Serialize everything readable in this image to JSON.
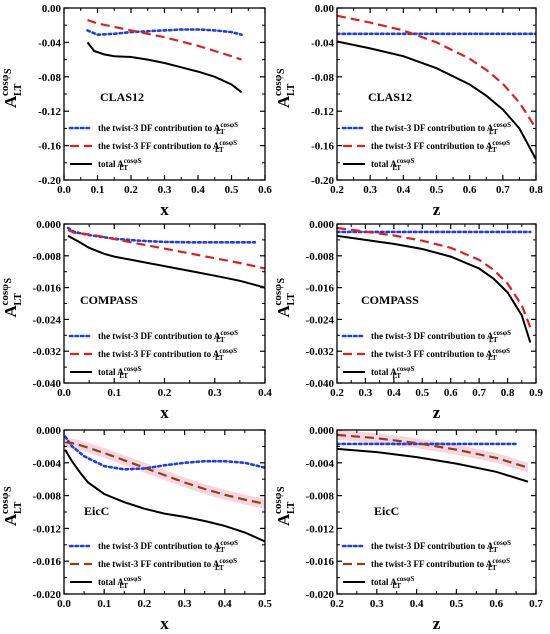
{
  "figure": {
    "y_label": {
      "main": "A",
      "sup": "cosφ",
      "sup_sub": "S",
      "sub": "LT"
    }
  },
  "chart_data": [
    {
      "type": "line",
      "annotation": "CLAS12",
      "xlabel": "x",
      "xlim": [
        0.0,
        0.6
      ],
      "ylim": [
        -0.2,
        0.0
      ],
      "xticks": [
        "0.0",
        "0.1",
        "0.2",
        "0.3",
        "0.4",
        "0.5",
        "0.6"
      ],
      "yticks": [
        "-0.20",
        "-0.16",
        "-0.12",
        "-0.08",
        "-0.04",
        "0.00"
      ],
      "series": [
        {
          "name": "the twist-3 DF contribution to A",
          "name_sup": "cosφS",
          "name_sub": "LT",
          "style": "dotted",
          "color": "#1f3fe0",
          "x": [
            0.07,
            0.1,
            0.15,
            0.2,
            0.25,
            0.3,
            0.35,
            0.4,
            0.45,
            0.5,
            0.53
          ],
          "y": [
            -0.026,
            -0.031,
            -0.03,
            -0.028,
            -0.027,
            -0.026,
            -0.025,
            -0.025,
            -0.026,
            -0.028,
            -0.031
          ]
        },
        {
          "name": "the twist-3 FF contribution to A",
          "name_sup": "cosφS",
          "name_sub": "LT",
          "style": "dashed",
          "color": "#e01f1f",
          "x": [
            0.07,
            0.1,
            0.15,
            0.2,
            0.25,
            0.3,
            0.35,
            0.4,
            0.45,
            0.5,
            0.53
          ],
          "y": [
            -0.014,
            -0.018,
            -0.022,
            -0.026,
            -0.03,
            -0.034,
            -0.039,
            -0.044,
            -0.05,
            -0.056,
            -0.06
          ]
        },
        {
          "name": "total A",
          "name_sup": "cosφS",
          "name_sub": "LT",
          "style": "solid",
          "color": "#000000",
          "x": [
            0.07,
            0.09,
            0.12,
            0.15,
            0.2,
            0.25,
            0.3,
            0.35,
            0.4,
            0.45,
            0.5,
            0.53
          ],
          "y": [
            -0.04,
            -0.05,
            -0.054,
            -0.056,
            -0.057,
            -0.06,
            -0.064,
            -0.069,
            -0.074,
            -0.08,
            -0.089,
            -0.098
          ]
        }
      ]
    },
    {
      "type": "line",
      "annotation": "CLAS12",
      "xlabel": "z",
      "xlim": [
        0.2,
        0.8
      ],
      "ylim": [
        -0.2,
        0.0
      ],
      "xticks": [
        "0.2",
        "0.3",
        "0.4",
        "0.5",
        "0.6",
        "0.7",
        "0.8"
      ],
      "yticks": [
        "-0.20",
        "-0.16",
        "-0.12",
        "-0.08",
        "-0.04",
        "0.00"
      ],
      "series": [
        {
          "name": "the twist-3 DF contribution to A",
          "name_sup": "cosφS",
          "name_sub": "LT",
          "style": "dotted",
          "color": "#1f3fe0",
          "x": [
            0.2,
            0.3,
            0.4,
            0.5,
            0.6,
            0.7,
            0.8
          ],
          "y": [
            -0.03,
            -0.03,
            -0.03,
            -0.03,
            -0.03,
            -0.03,
            -0.03
          ]
        },
        {
          "name": "the twist-3 FF contribution to A",
          "name_sup": "cosφS",
          "name_sub": "LT",
          "style": "dashed",
          "color": "#e01f1f",
          "x": [
            0.2,
            0.3,
            0.4,
            0.5,
            0.6,
            0.65,
            0.7,
            0.75,
            0.8
          ],
          "y": [
            -0.009,
            -0.017,
            -0.026,
            -0.04,
            -0.059,
            -0.072,
            -0.088,
            -0.11,
            -0.14
          ]
        },
        {
          "name": "total A",
          "name_sup": "cosφS",
          "name_sub": "LT",
          "style": "solid",
          "color": "#000000",
          "x": [
            0.2,
            0.3,
            0.4,
            0.5,
            0.6,
            0.65,
            0.7,
            0.75,
            0.8
          ],
          "y": [
            -0.039,
            -0.047,
            -0.056,
            -0.07,
            -0.089,
            -0.102,
            -0.118,
            -0.14,
            -0.176
          ]
        }
      ]
    },
    {
      "type": "line",
      "annotation": "COMPASS",
      "xlabel": "x",
      "xlim": [
        0.0,
        0.4
      ],
      "ylim": [
        -0.04,
        0.0
      ],
      "xticks": [
        "0.0",
        "0.1",
        "0.2",
        "0.3",
        "0.4"
      ],
      "yticks": [
        "-0.040",
        "-0.032",
        "-0.024",
        "-0.016",
        "-0.008",
        "0.000"
      ],
      "series": [
        {
          "name": "the twist-3 DF contribution to A",
          "name_sup": "cosφS",
          "name_sub": "LT",
          "style": "dotted",
          "color": "#1f3fe0",
          "x": [
            0.008,
            0.02,
            0.05,
            0.1,
            0.15,
            0.2,
            0.25,
            0.3,
            0.35,
            0.38
          ],
          "y": [
            -0.001,
            -0.002,
            -0.0028,
            -0.0037,
            -0.0042,
            -0.0045,
            -0.0046,
            -0.0046,
            -0.0046,
            -0.0046
          ]
        },
        {
          "name": "the twist-3 FF contribution to A",
          "name_sup": "cosφS",
          "name_sub": "LT",
          "style": "dashed",
          "color": "#e01f1f",
          "x": [
            0.008,
            0.02,
            0.04,
            0.06,
            0.1,
            0.15,
            0.2,
            0.25,
            0.3,
            0.35,
            0.4
          ],
          "y": [
            -0.0015,
            -0.0022,
            -0.0025,
            -0.0028,
            -0.0038,
            -0.005,
            -0.0062,
            -0.0074,
            -0.0086,
            -0.0098,
            -0.0112
          ]
        },
        {
          "name": "total A",
          "name_sup": "cosφS",
          "name_sub": "LT",
          "style": "solid",
          "color": "#000000",
          "x": [
            0.008,
            0.02,
            0.03,
            0.05,
            0.08,
            0.1,
            0.15,
            0.2,
            0.25,
            0.3,
            0.35,
            0.4
          ],
          "y": [
            -0.003,
            -0.0038,
            -0.0045,
            -0.006,
            -0.0075,
            -0.0082,
            -0.0094,
            -0.0106,
            -0.0118,
            -0.013,
            -0.0143,
            -0.016
          ]
        }
      ]
    },
    {
      "type": "line",
      "annotation": "COMPASS",
      "xlabel": "z",
      "xlim": [
        0.2,
        0.9
      ],
      "ylim": [
        -0.04,
        0.0
      ],
      "xticks": [
        "0.2",
        "0.3",
        "0.4",
        "0.5",
        "0.6",
        "0.7",
        "0.8",
        "0.9"
      ],
      "yticks": [
        "-0.040",
        "-0.032",
        "-0.024",
        "-0.016",
        "-0.008",
        "0.000"
      ],
      "series": [
        {
          "name": "the twist-3 DF contribution to A",
          "name_sup": "cosφS",
          "name_sub": "LT",
          "style": "dotted",
          "color": "#1f3fe0",
          "x": [
            0.2,
            0.3,
            0.4,
            0.5,
            0.6,
            0.7,
            0.8,
            0.88
          ],
          "y": [
            -0.002,
            -0.002,
            -0.002,
            -0.002,
            -0.002,
            -0.002,
            -0.002,
            -0.002
          ]
        },
        {
          "name": "the twist-3 FF contribution to A",
          "name_sup": "cosφS",
          "name_sub": "LT",
          "style": "dashed",
          "color": "#e01f1f",
          "x": [
            0.2,
            0.3,
            0.4,
            0.5,
            0.6,
            0.7,
            0.75,
            0.8,
            0.85,
            0.88
          ],
          "y": [
            -0.001,
            -0.0019,
            -0.0029,
            -0.0042,
            -0.006,
            -0.009,
            -0.0115,
            -0.015,
            -0.0205,
            -0.026
          ]
        },
        {
          "name": "total A",
          "name_sup": "cosφS",
          "name_sub": "LT",
          "style": "solid",
          "color": "#000000",
          "x": [
            0.2,
            0.3,
            0.4,
            0.5,
            0.6,
            0.7,
            0.75,
            0.8,
            0.85,
            0.88
          ],
          "y": [
            -0.003,
            -0.004,
            -0.005,
            -0.0063,
            -0.0082,
            -0.0112,
            -0.0137,
            -0.0172,
            -0.023,
            -0.0298
          ]
        }
      ]
    },
    {
      "type": "line",
      "annotation": "EicC",
      "xlabel": "x",
      "xlim": [
        0.0,
        0.5
      ],
      "ylim": [
        -0.02,
        0.0
      ],
      "xticks": [
        "0.0",
        "0.1",
        "0.2",
        "0.3",
        "0.4",
        "0.5"
      ],
      "yticks": [
        "-0.020",
        "-0.016",
        "-0.012",
        "-0.008",
        "-0.004",
        "0.000"
      ],
      "series": [
        {
          "name": "the twist-3 DF contribution to A",
          "name_sup": "cosφS",
          "name_sub": "LT",
          "style": "dotted",
          "color": "#1f3fe0",
          "x": [
            0.003,
            0.02,
            0.05,
            0.1,
            0.15,
            0.2,
            0.25,
            0.3,
            0.35,
            0.4,
            0.45,
            0.5
          ],
          "y": [
            -0.0008,
            -0.002,
            -0.0032,
            -0.0044,
            -0.0048,
            -0.0047,
            -0.0043,
            -0.004,
            -0.0038,
            -0.0038,
            -0.004,
            -0.0046
          ]
        },
        {
          "name": "the twist-3 FF contribution to A",
          "name_sup": "cosφS",
          "name_sub": "LT",
          "style": "dashed",
          "color": "#8b4513",
          "x": [
            0.003,
            0.02,
            0.05,
            0.1,
            0.15,
            0.2,
            0.25,
            0.3,
            0.35,
            0.4,
            0.45,
            0.5
          ],
          "y": [
            -0.0015,
            -0.0016,
            -0.002,
            -0.0028,
            -0.0037,
            -0.0046,
            -0.0055,
            -0.0064,
            -0.0072,
            -0.0079,
            -0.0085,
            -0.009
          ]
        },
        {
          "name": "total A",
          "name_sup": "cosφS",
          "name_sub": "LT",
          "style": "solid",
          "color": "#000000",
          "x": [
            0.003,
            0.01,
            0.02,
            0.04,
            0.06,
            0.1,
            0.15,
            0.2,
            0.25,
            0.3,
            0.35,
            0.4,
            0.45,
            0.5
          ],
          "y": [
            -0.0024,
            -0.003,
            -0.0038,
            -0.0052,
            -0.0064,
            -0.0078,
            -0.0088,
            -0.0096,
            -0.0102,
            -0.0106,
            -0.0111,
            -0.0117,
            -0.0125,
            -0.0136
          ]
        }
      ]
    },
    {
      "type": "line",
      "annotation": "EicC",
      "xlabel": "z",
      "xlim": [
        0.2,
        0.7
      ],
      "ylim": [
        -0.02,
        0.0
      ],
      "xticks": [
        "0.2",
        "0.3",
        "0.4",
        "0.5",
        "0.6",
        "0.7"
      ],
      "yticks": [
        "-0.020",
        "-0.016",
        "-0.012",
        "-0.008",
        "-0.004",
        "0.000"
      ],
      "series": [
        {
          "name": "the twist-3 DF contribution to A",
          "name_sup": "cosφS",
          "name_sub": "LT",
          "style": "dotted",
          "color": "#1f3fe0",
          "x": [
            0.2,
            0.3,
            0.4,
            0.5,
            0.6,
            0.65
          ],
          "y": [
            -0.0017,
            -0.0017,
            -0.0017,
            -0.0017,
            -0.0017,
            -0.0017
          ]
        },
        {
          "name": "the twist-3 FF contribution to A",
          "name_sup": "cosφS",
          "name_sub": "LT",
          "style": "dashed",
          "color": "#8b4513",
          "x": [
            0.2,
            0.3,
            0.4,
            0.5,
            0.6,
            0.68
          ],
          "y": [
            -0.0006,
            -0.001,
            -0.0016,
            -0.0024,
            -0.0034,
            -0.0046
          ]
        },
        {
          "name": "total A",
          "name_sup": "cosφS",
          "name_sub": "LT",
          "style": "solid",
          "color": "#000000",
          "x": [
            0.2,
            0.3,
            0.4,
            0.5,
            0.6,
            0.68
          ],
          "y": [
            -0.0023,
            -0.0027,
            -0.0033,
            -0.0041,
            -0.0051,
            -0.0063
          ]
        }
      ]
    }
  ]
}
